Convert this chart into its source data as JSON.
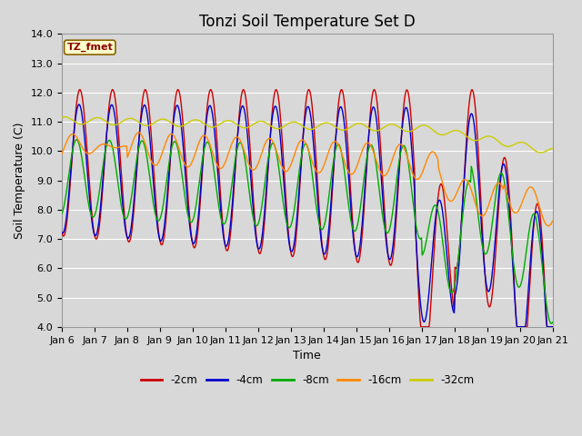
{
  "title": "Tonzi Soil Temperature Set D",
  "xlabel": "Time",
  "ylabel": "Soil Temperature (C)",
  "ylim": [
    4.0,
    14.0
  ],
  "yticks": [
    4.0,
    5.0,
    6.0,
    7.0,
    8.0,
    9.0,
    10.0,
    11.0,
    12.0,
    13.0,
    14.0
  ],
  "xtick_labels": [
    "Jan 6",
    "Jan 7",
    "Jan 8",
    "Jan 9",
    "Jan 10",
    "Jan 11",
    "Jan 12",
    "Jan 13",
    "Jan 14",
    "Jan 15",
    "Jan 16",
    "Jan 17",
    "Jan 18",
    "Jan 19",
    "Jan 20",
    "Jan 21"
  ],
  "series_colors": [
    "#cc0000",
    "#0000cc",
    "#00aa00",
    "#ff8800",
    "#cccc00"
  ],
  "series_labels": [
    "-2cm",
    "-4cm",
    "-8cm",
    "-16cm",
    "-32cm"
  ],
  "legend_label": "TZ_fmet",
  "bg_color": "#d8d8d8",
  "fig_bg_color": "#d8d8d8",
  "grid_color": "#ffffff",
  "line_width": 1.0,
  "n_points": 720,
  "title_fontsize": 12,
  "axis_label_fontsize": 9,
  "tick_fontsize": 8
}
